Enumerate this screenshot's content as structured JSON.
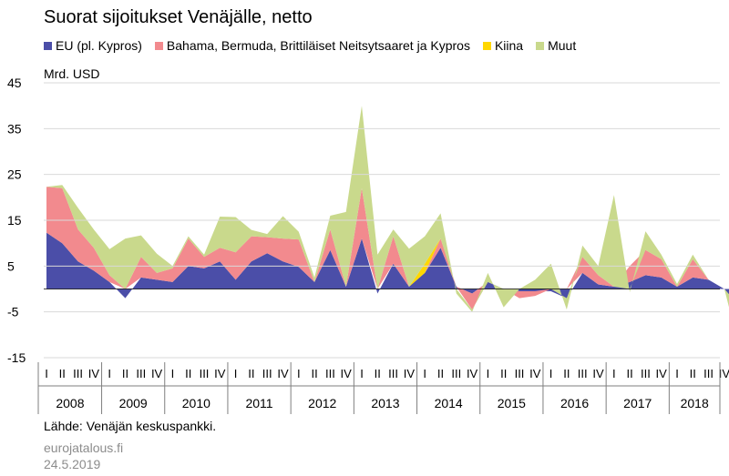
{
  "title": "Suorat sijoitukset Venäjälle, netto",
  "unit": "Mrd. USD",
  "source": "Lähde: Venäjän keskuspankki.",
  "footer": {
    "site": "eurojatalous.fi",
    "date": "24.5.2019"
  },
  "chart_data": {
    "type": "area",
    "title": "Suorat sijoitukset Venäjälle, netto",
    "ylabel": "Mrd. USD",
    "ylim": [
      -15,
      45
    ],
    "yticks": [
      45,
      35,
      25,
      15,
      5,
      -5,
      -15
    ],
    "legend_position": "top",
    "quarters": [
      "I",
      "II",
      "III",
      "IV"
    ],
    "years": [
      "2008",
      "2009",
      "2010",
      "2011",
      "2012",
      "2013",
      "2014",
      "2015",
      "2016",
      "2017",
      "2018"
    ],
    "series": [
      {
        "name": "EU (pl. Kypros)",
        "color": "#4b4ea8",
        "values": [
          12.3,
          10,
          6,
          4,
          1.5,
          -2,
          2.5,
          2,
          1.5,
          5,
          4.5,
          6,
          2,
          6,
          7.8,
          6,
          4.8,
          1.5,
          8.5,
          0.5,
          11,
          -1,
          5.5,
          0.5,
          3.5,
          9,
          0.5,
          -1,
          1.5,
          0,
          -0.5,
          -0.5,
          -0.5,
          -2,
          3.5,
          1,
          0.5,
          1.5,
          3,
          2.5,
          0.5,
          2.5,
          2,
          0,
          -4,
          0
        ]
      },
      {
        "name": "Bahama, Bermuda, Brittiläiset Neitsytsaaret ja Kyproksen",
        "color": "#f28a8e",
        "values": [
          10,
          12,
          7,
          5,
          1.5,
          0,
          4.5,
          1.5,
          3,
          6,
          2.5,
          3,
          6,
          5.5,
          3.5,
          5,
          6,
          0,
          4.5,
          0,
          11,
          0,
          6,
          0,
          0,
          2,
          0,
          -3.5,
          0,
          0,
          -1.5,
          -1,
          0,
          0,
          3.5,
          2,
          0,
          3.5,
          5.5,
          4,
          0,
          4,
          0,
          0,
          0,
          0
        ]
      },
      {
        "name": "Kiina",
        "color": "#ffd700",
        "values": [
          0,
          0,
          0,
          0,
          0,
          0,
          0,
          0,
          0,
          0,
          0,
          0,
          0,
          0,
          0,
          0,
          0,
          0,
          0,
          0,
          0,
          0,
          0,
          0,
          2,
          0,
          0,
          0,
          0,
          0,
          0,
          0,
          0,
          0,
          0,
          0,
          0,
          0,
          0,
          0,
          0,
          0,
          0,
          0,
          0,
          0
        ]
      },
      {
        "name": "Muut",
        "color": "#c9d98c",
        "values": [
          0,
          0.7,
          4.7,
          4,
          5.7,
          11,
          4.7,
          4.2,
          0.5,
          0.5,
          0.5,
          6.8,
          7.7,
          1.4,
          0.7,
          4.9,
          1.7,
          1,
          3,
          16.3,
          18,
          7.5,
          1.5,
          8.3,
          6,
          5.5,
          -1,
          -0.5,
          2,
          -4,
          0,
          2,
          5.5,
          -2.5,
          2.5,
          2,
          20,
          -0.7,
          4.1,
          1,
          0.6,
          1,
          0,
          0,
          -9.5,
          0
        ]
      }
    ]
  },
  "legend": [
    "EU (pl. Kypros)",
    "Bahama, Bermuda, Brittiläiset Neitsytsaaret ja Kypros",
    "Kiina",
    "Muut"
  ]
}
